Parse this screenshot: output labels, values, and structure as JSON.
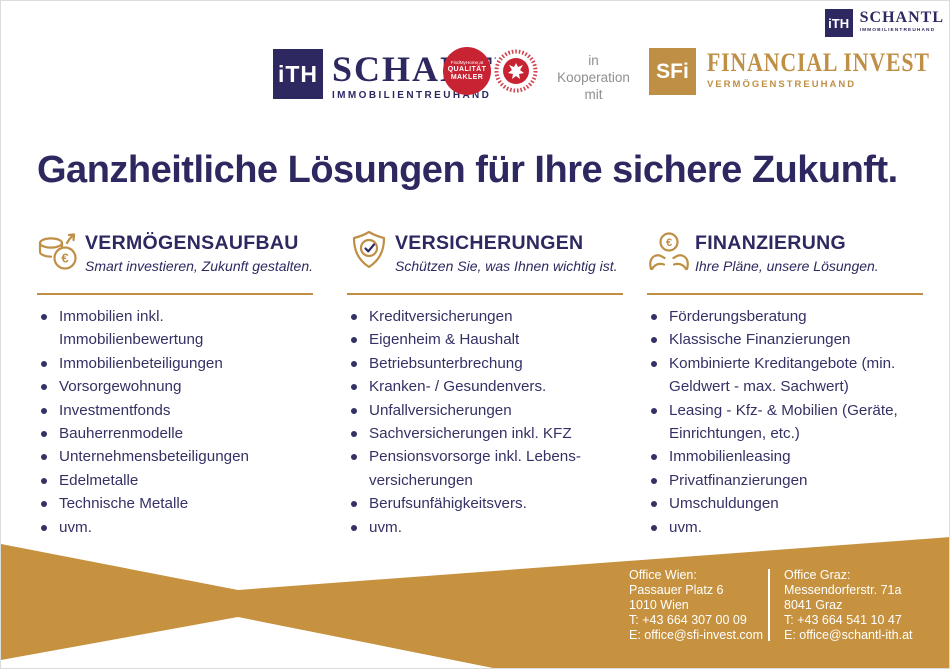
{
  "colors": {
    "navy": "#2d2960",
    "gold": "#bf8f45",
    "footer_gold": "#c6923f",
    "red": "#c82333",
    "gray": "#8d8f92"
  },
  "header": {
    "monogram": "iTH",
    "brand": "SCHANTL",
    "brand_sub": "IMMOBILIENTREUHAND",
    "quality_badge": {
      "brand": "FindMyHome.at",
      "line1": "QUALITÄT",
      "line2": "MAKLER"
    },
    "kooperation": "in\nKooperation\nmit",
    "sfi_monogram": "SFi",
    "sfi_brand": "FINANCIAL INVEST",
    "sfi_sub": "VERMÖGENSTREUHAND"
  },
  "corner_logo": {
    "monogram": "iTH",
    "brand": "SCHANTL",
    "brand_sub": "IMMOBILIENTREUHAND"
  },
  "title": "Ganzheitliche Lösungen für Ihre sichere Zukunft.",
  "columns": [
    {
      "heading": "VERMÖGENSAUFBAU",
      "subtitle": "Smart investieren, Zukunft gestalten.",
      "items": [
        "Immobilien inkl. Immobilienbewertung",
        "Immobilienbeteiligungen",
        "Vorsorgewohnung",
        "Investmentfonds",
        "Bauherrenmodelle",
        "Unternehmensbeteiligungen",
        "Edelmetalle",
        "Technische Metalle",
        "uvm."
      ]
    },
    {
      "heading": "VERSICHERUNGEN",
      "subtitle": "Schützen Sie, was Ihnen wichtig ist.",
      "items": [
        "Kreditversicherungen",
        "Eigenheim & Haushalt",
        "Betriebsunterbrechung",
        "Kranken- / Gesundenvers.",
        "Unfallversicherungen",
        "Sachversicherungen inkl. KFZ",
        "Pensionsvorsorge inkl. Lebens-versicherungen",
        "Berufsunfähigkeitsvers.",
        "uvm."
      ]
    },
    {
      "heading": "FINANZIERUNG",
      "subtitle": "Ihre Pläne, unsere Lösungen.",
      "items": [
        "Förderungsberatung",
        "Klassische Finanzierungen",
        "Kombinierte Kreditangebote (min. Geldwert - max. Sachwert)",
        "Leasing - Kfz- & Mobilien (Geräte, Einrichtungen, etc.)",
        "Immobilienleasing",
        "Privatfinanzierungen",
        "Umschuldungen",
        "uvm."
      ]
    }
  ],
  "footer": {
    "offices": [
      {
        "label": "Office Wien:",
        "street": "Passauer Platz 6",
        "city": "1010 Wien",
        "phone": "T: +43 664 307 00 09",
        "email": "E: office@sfi-invest.com"
      },
      {
        "label": "Office Graz:",
        "street": "Messendorferstr. 71a",
        "city": "8041 Graz",
        "phone": "T: +43 664 541 10 47",
        "email": "E: office@schantl-ith.at"
      }
    ]
  }
}
